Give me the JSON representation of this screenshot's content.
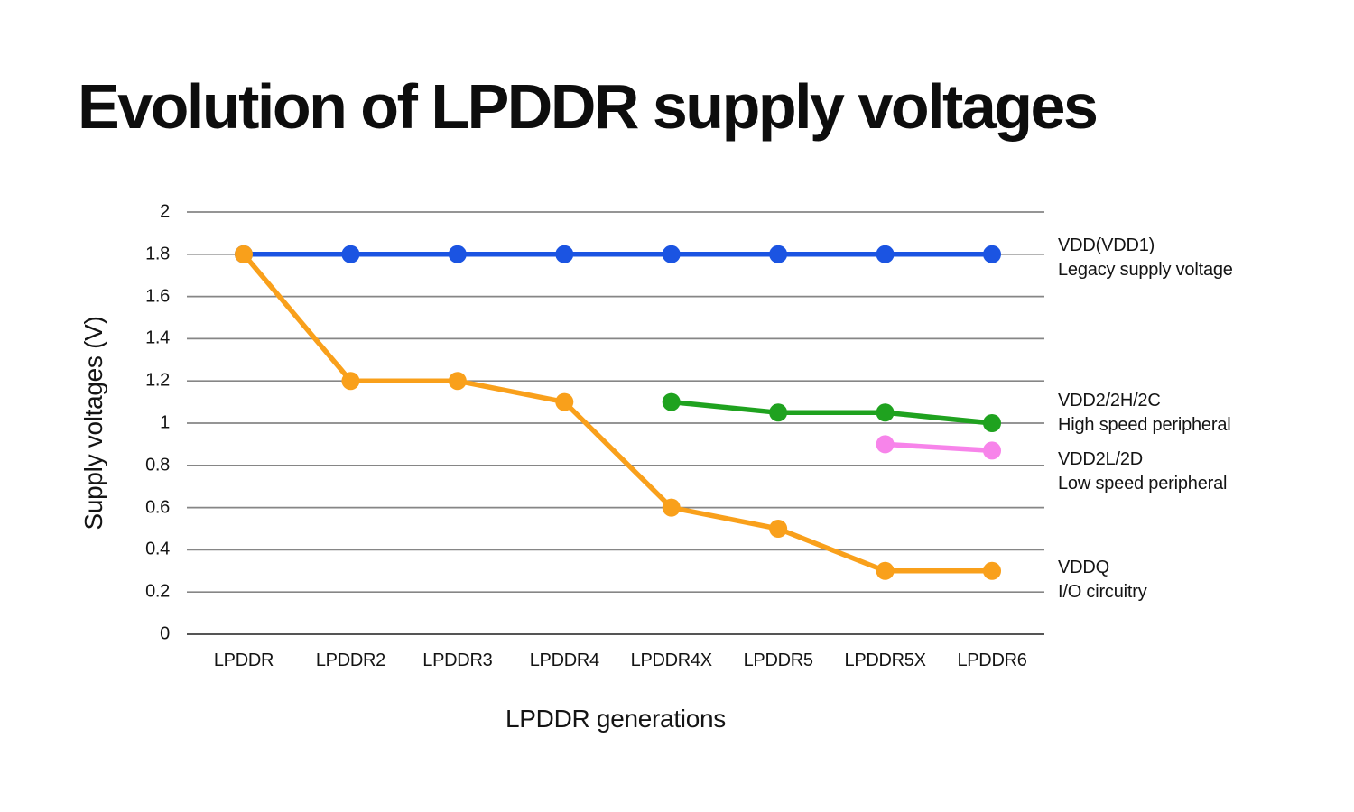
{
  "chart_data": {
    "type": "line",
    "title": "Evolution of LPDDR supply voltages",
    "xlabel": "LPDDR generations",
    "ylabel": "Supply voltages (V)",
    "categories": [
      "LPDDR",
      "LPDDR2",
      "LPDDR3",
      "LPDDR4",
      "LPDDR4X",
      "LPDDR5",
      "LPDDR5X",
      "LPDDR6"
    ],
    "ylim": [
      0,
      2
    ],
    "ytick_values": [
      2,
      1.8,
      1.6,
      1.4,
      1.2,
      1,
      0.8,
      0.6,
      0.4,
      0.2,
      0
    ],
    "ytick_labels": [
      "2",
      "1.8",
      "1.6",
      "1.4",
      "1.2",
      "1",
      "0.8",
      "0.6",
      "0.4",
      "0.2",
      "0"
    ],
    "grid": "horizontal",
    "legend_position": "right",
    "series": [
      {
        "name": "VDD(VDD1)",
        "description": "Legacy supply voltage",
        "color": "#1b54e2",
        "values": [
          1.8,
          1.8,
          1.8,
          1.8,
          1.8,
          1.8,
          1.8,
          1.8
        ]
      },
      {
        "name": "VDD2/2H/2C",
        "description": "High speed peripheral",
        "color": "#1fa21f",
        "values": [
          null,
          null,
          null,
          null,
          1.1,
          1.05,
          1.05,
          1.0
        ]
      },
      {
        "name": "VDD2L/2D",
        "description": "Low speed peripheral",
        "color": "#f784ea",
        "values": [
          null,
          null,
          null,
          null,
          null,
          null,
          0.9,
          0.87
        ]
      },
      {
        "name": "VDDQ",
        "description": "I/O circuitry",
        "color": "#f9a01b",
        "values": [
          1.8,
          1.2,
          1.2,
          1.1,
          0.6,
          0.5,
          0.3,
          0.3
        ]
      }
    ],
    "colors": {
      "gridline": "#868686",
      "baseline": "#555555",
      "text": "#141414"
    }
  }
}
